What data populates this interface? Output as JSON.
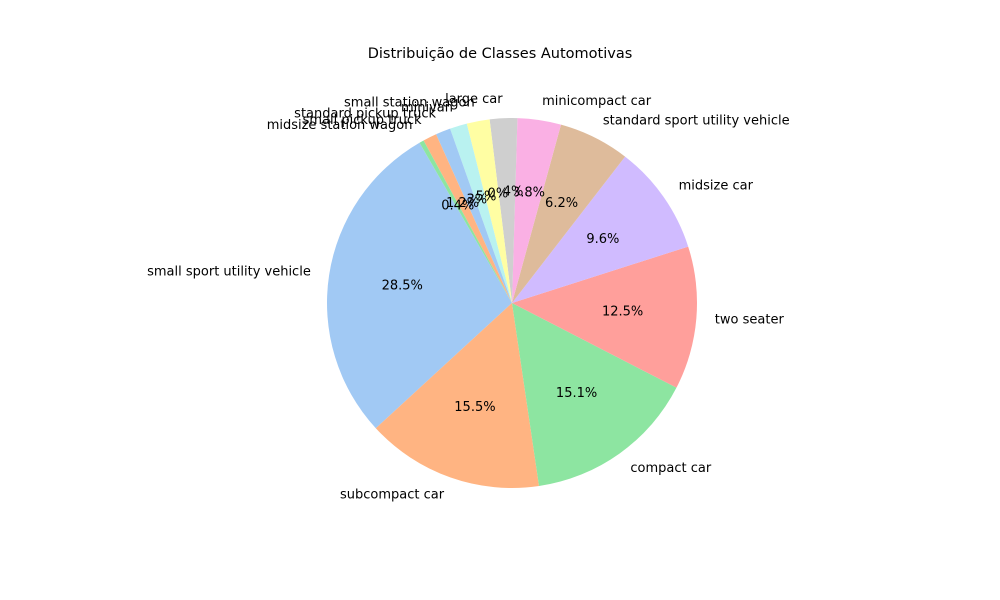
{
  "chart_data": {
    "type": "pie",
    "title": "Distribuição de Classes Automotivas",
    "categories": [
      "small sport utility vehicle",
      "subcompact car",
      "compact car",
      "two seater",
      "midsize car",
      "standard sport utility vehicle",
      "minicompact car",
      "large car",
      "small station wagon",
      "minivan",
      "standard pickup truck",
      "small pickup truck",
      "midsize station wagon"
    ],
    "values": [
      28.5,
      15.5,
      15.1,
      12.5,
      9.6,
      6.2,
      3.8,
      2.4,
      2.0,
      1.5,
      1.3,
      1.2,
      0.4
    ],
    "percent_labels": [
      "28.5%",
      "15.5%",
      "15.1%",
      "12.5%",
      "9.6%",
      "6.2%",
      "3.8%",
      "2.4%",
      "2.0%",
      "1.5%",
      "1.3%",
      "1.2%",
      "0.4%"
    ],
    "colors": [
      "#a1c9f4",
      "#ffb482",
      "#8de5a1",
      "#ff9f9b",
      "#d0bbff",
      "#debb9b",
      "#fab0e4",
      "#cfcfcf",
      "#fffea3",
      "#b9f2f0",
      "#a1c9f4",
      "#ffb482",
      "#8de5a1"
    ],
    "start_angle_deg": 120,
    "direction": "counterclockwise",
    "legend": "none"
  }
}
